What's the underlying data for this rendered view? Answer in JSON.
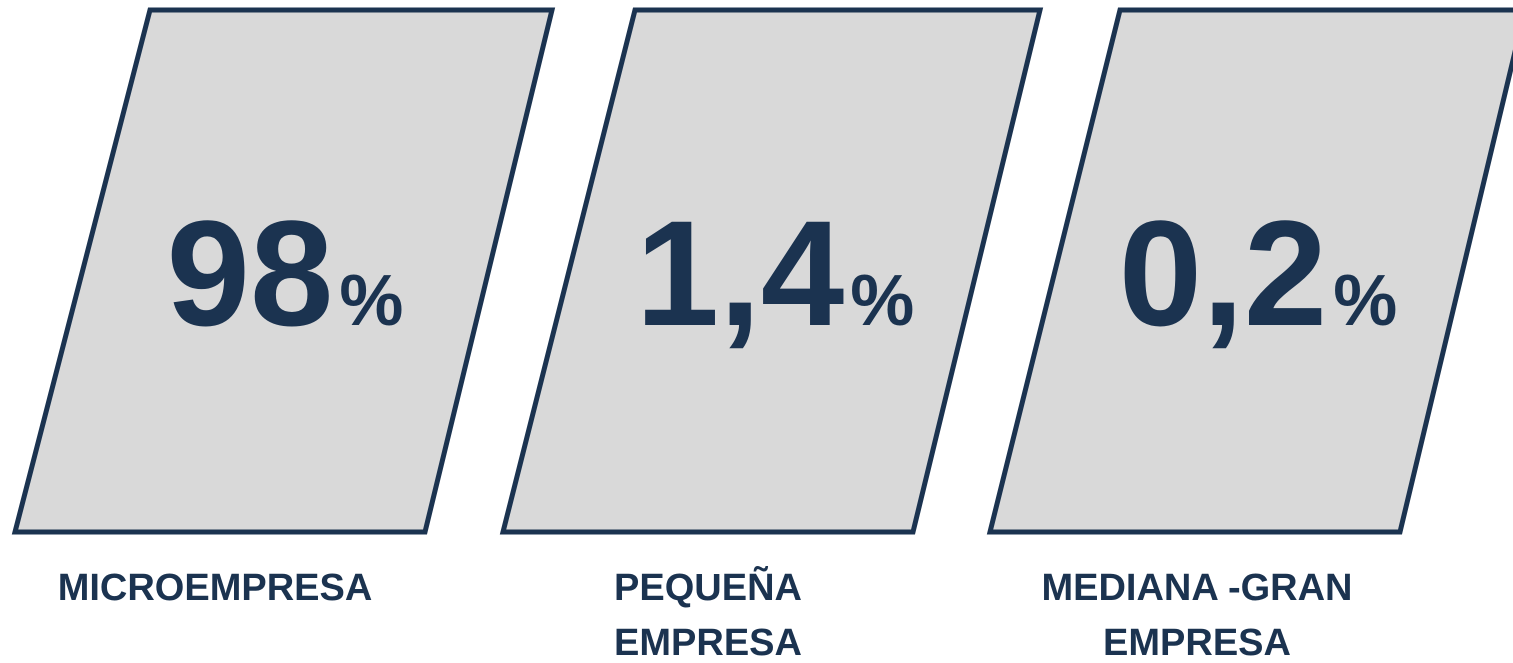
{
  "items": [
    {
      "value": "98",
      "unit": "%",
      "label": [
        "MICROEMPRESA"
      ]
    },
    {
      "value": "1,4",
      "unit": "%",
      "label": [
        "PEQUEÑA",
        "EMPRESA"
      ]
    },
    {
      "value": "0,2",
      "unit": "%",
      "label": [
        "MEDIANA -GRAN",
        "EMPRESA"
      ]
    }
  ]
}
